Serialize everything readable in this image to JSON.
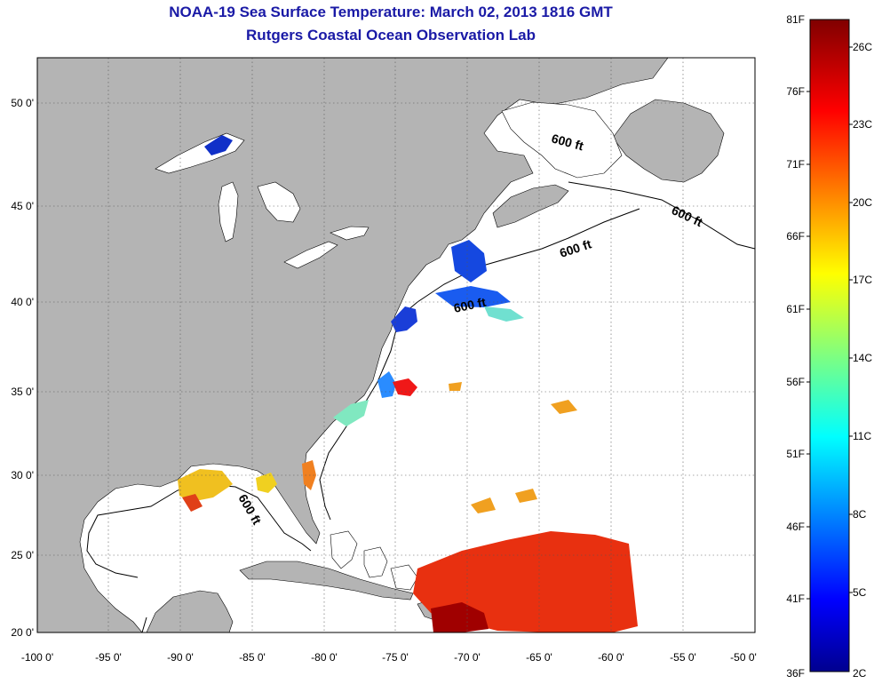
{
  "header": {
    "title": "NOAA-19 Sea Surface Temperature:  March 02, 2013 1816 GMT",
    "subtitle": "Rutgers Coastal Ocean Observation Lab"
  },
  "map": {
    "lon_ticks": [
      "-100 0'",
      "-95 0'",
      "-90 0'",
      "-85 0'",
      "-80 0'",
      "-75 0'",
      "-70 0'",
      "-65 0'",
      "-60 0'",
      "-55 0'",
      "-50 0'"
    ],
    "lat_ticks": [
      "20 0'",
      "25 0'",
      "30 0'",
      "35 0'",
      "40 0'",
      "45 0'",
      "50 0'"
    ],
    "isobath_labels": [
      "600 ft",
      "600 ft",
      "600 ft",
      "600 ft",
      "600 ft"
    ],
    "colors": {
      "land": "#b4b4b4",
      "water": "#ffffff",
      "grid": "#555555"
    }
  },
  "colorbar": {
    "fahrenheit": [
      "81F",
      "76F",
      "71F",
      "66F",
      "61F",
      "56F",
      "51F",
      "46F",
      "41F",
      "36F"
    ],
    "celsius": [
      "26C",
      "23C",
      "20C",
      "17C",
      "14C",
      "11C",
      "8C",
      "5C",
      "2C"
    ]
  }
}
